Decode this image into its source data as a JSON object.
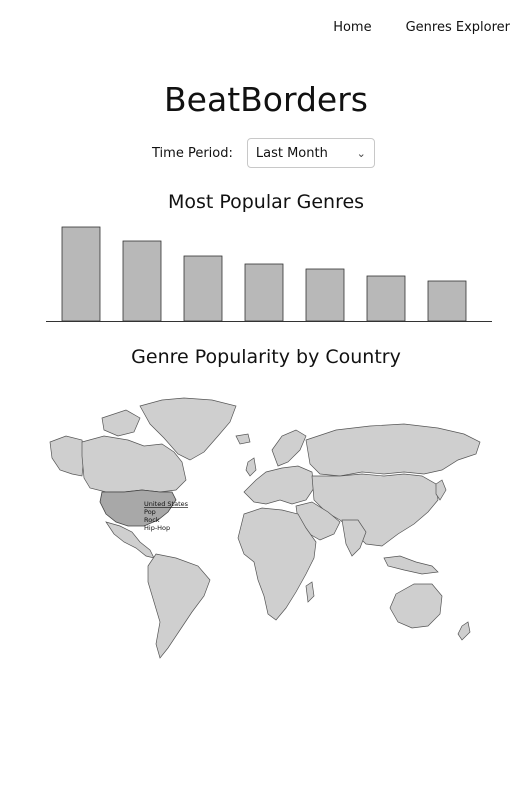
{
  "nav": {
    "home": "Home",
    "genres_explorer": "Genres Explorer"
  },
  "app": {
    "title": "BeatBorders"
  },
  "filter": {
    "label": "Time Period:",
    "selected": "Last Month"
  },
  "charts": {
    "bar_title": "Most Popular Genres",
    "map_title": "Genre Popularity by Country"
  },
  "chart_data": {
    "type": "bar",
    "categories": [
      "",
      "",
      "",
      "",
      "",
      "",
      ""
    ],
    "values": [
      94,
      80,
      65,
      57,
      52,
      45,
      40
    ],
    "title": "Most Popular Genres",
    "xlabel": "",
    "ylabel": "",
    "ylim": [
      0,
      100
    ],
    "grid": false
  },
  "map_tooltip": {
    "country": "United States",
    "genres": [
      "Pop",
      "Rock",
      "Hip-Hop"
    ]
  },
  "colors": {
    "bar_fill": "#b8b8b8",
    "bar_stroke": "#333333",
    "land": "#cfcfcf",
    "land_highlight": "#a8a8a8"
  }
}
